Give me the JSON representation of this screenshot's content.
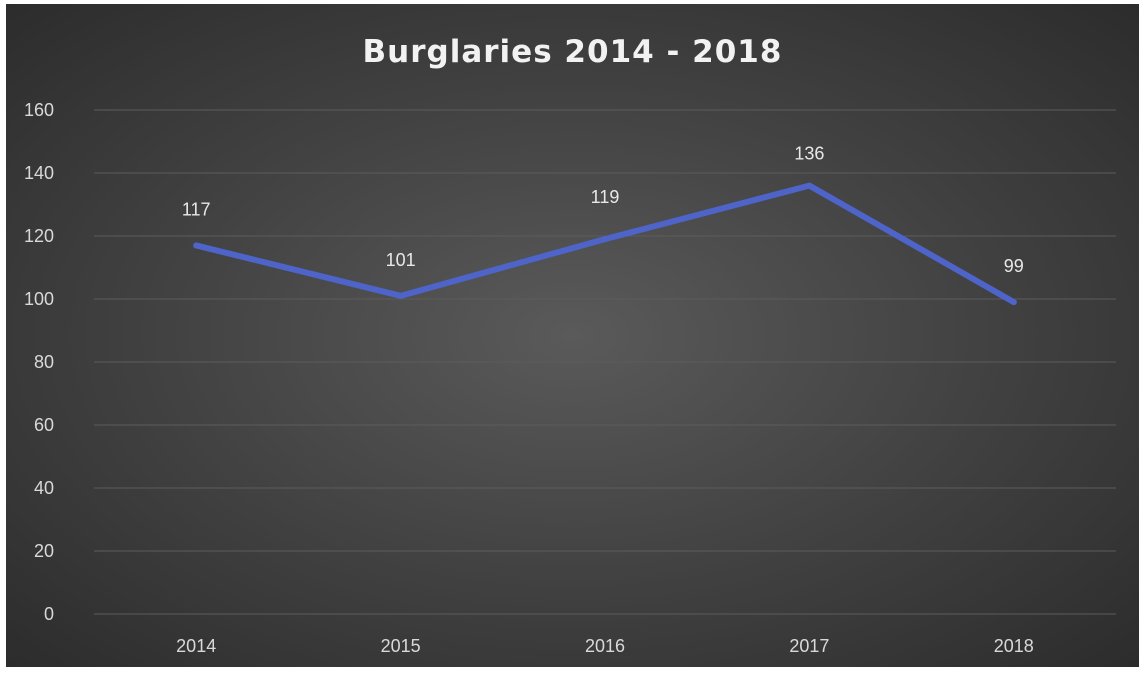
{
  "chart_data": {
    "type": "line",
    "title": "Burglaries 2014 - 2018",
    "xlabel": "",
    "ylabel": "",
    "categories": [
      "2014",
      "2015",
      "2016",
      "2017",
      "2018"
    ],
    "series": [
      {
        "values": [
          117,
          101,
          119,
          136,
          99
        ],
        "color": "#4e64c8"
      }
    ],
    "data_labels": [
      "117",
      "101",
      "119",
      "136",
      "99"
    ],
    "y_ticks": [
      "0",
      "20",
      "40",
      "60",
      "80",
      "100",
      "120",
      "140",
      "160"
    ],
    "ylim": [
      0,
      160
    ],
    "grid": true,
    "legend": "none",
    "colors": {
      "gridline": "#5c5c5c",
      "line": "#4e64c8",
      "text": "#d9d9d9"
    }
  }
}
